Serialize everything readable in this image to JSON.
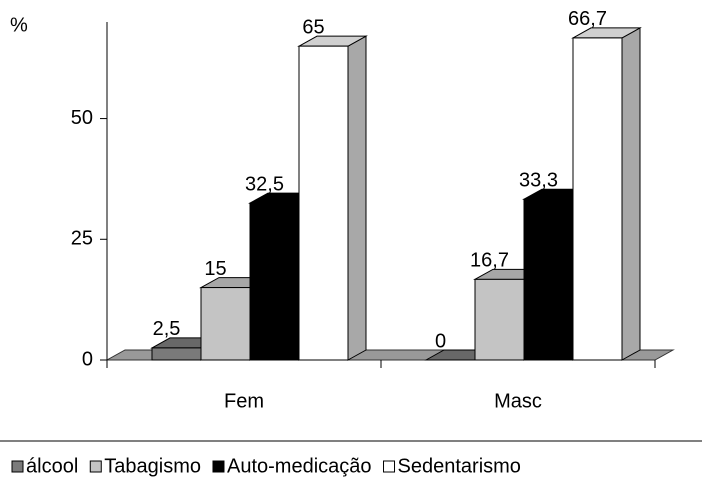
{
  "chart_data": {
    "type": "bar3d",
    "y_label": "%",
    "categories": [
      "Fem",
      "Masc"
    ],
    "series": [
      {
        "name": "álcool",
        "color": "#7a7a7a",
        "values": [
          2.5,
          0
        ],
        "value_labels": [
          "2,5",
          "0"
        ]
      },
      {
        "name": "Tabagismo",
        "color": "#c4c4c4",
        "values": [
          15,
          16.7
        ],
        "value_labels": [
          "15",
          "16,7"
        ]
      },
      {
        "name": "Auto-medicação",
        "color": "#000000",
        "values": [
          32.5,
          33.3
        ],
        "value_labels": [
          "32,5",
          "33,3"
        ]
      },
      {
        "name": "Sedentarismo",
        "color": "#ffffff",
        "values": [
          65,
          66.7
        ],
        "value_labels": [
          "65",
          "66,7"
        ]
      }
    ],
    "ylim": [
      0,
      70
    ],
    "yticks": [
      0,
      25,
      50
    ],
    "legend": "bottom"
  }
}
